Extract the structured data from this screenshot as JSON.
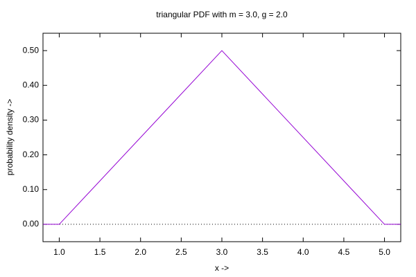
{
  "chart_data": {
    "type": "line",
    "title": "triangular PDF with m = 3.0, g = 2.0",
    "x_label": "x ->",
    "y_label": "probability density ->",
    "x": [
      0.8,
      1.0,
      3.0,
      5.0,
      5.2
    ],
    "values": [
      0,
      0,
      0.5,
      0,
      0
    ],
    "color": "#9400d3",
    "xlim": [
      0.8,
      5.2
    ],
    "xticks": [
      {
        "value": 1,
        "label": "1.0"
      },
      {
        "value": 1.5,
        "label": "1.5"
      },
      {
        "value": 2,
        "label": "2.0"
      },
      {
        "value": 2.5,
        "label": "2.5"
      },
      {
        "value": 3,
        "label": "3.0"
      },
      {
        "value": 3.5,
        "label": "3.5"
      },
      {
        "value": 4,
        "label": "4.0"
      },
      {
        "value": 4.5,
        "label": "4.5"
      },
      {
        "value": 5,
        "label": "5.0"
      }
    ],
    "ylim": [
      -0.05,
      0.55
    ],
    "yticks": [
      {
        "value": 0,
        "label": "0.00"
      },
      {
        "value": 0.1,
        "label": "0.10"
      },
      {
        "value": 0.2,
        "label": "0.20"
      },
      {
        "value": 0.3,
        "label": "0.30"
      },
      {
        "value": 0.4,
        "label": "0.40"
      },
      {
        "value": 0.5,
        "label": "0.50"
      }
    ],
    "zero_axis": true,
    "grid": false
  }
}
